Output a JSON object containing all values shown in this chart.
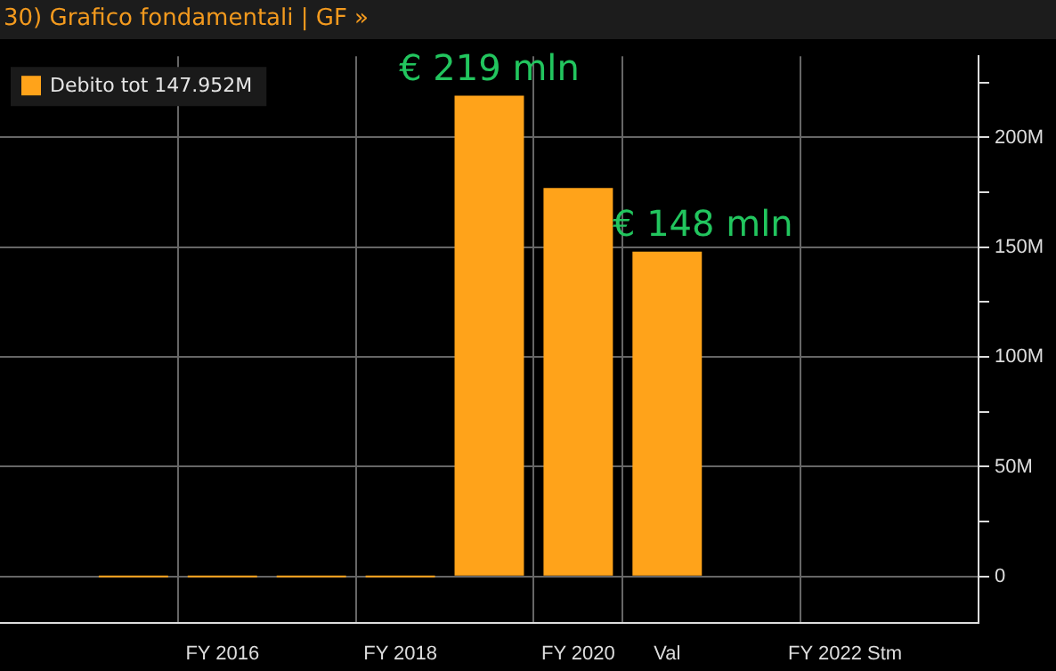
{
  "chart_data": {
    "type": "bar",
    "title": "30) Grafico fondamentali | GF »",
    "categories": [
      null,
      null,
      "FY 2016",
      null,
      "FY 2018",
      null,
      "FY 2020",
      "Val",
      null,
      "FY 2022 Stm",
      null
    ],
    "series": [
      {
        "name": "Debito tot 147.952M",
        "color": "#ffa31a",
        "values": [
          null,
          0,
          0,
          0,
          0,
          219,
          177,
          148,
          null,
          null,
          null
        ]
      }
    ],
    "ylim": [
      -21,
      237
    ],
    "yticks": [
      {
        "value": 0,
        "label": "0"
      },
      {
        "value": 25,
        "label": null
      },
      {
        "value": 50,
        "label": "50M"
      },
      {
        "value": 75,
        "label": null
      },
      {
        "value": 100,
        "label": "100M"
      },
      {
        "value": 125,
        "label": null
      },
      {
        "value": 150,
        "label": "150M"
      },
      {
        "value": 175,
        "label": null
      },
      {
        "value": 200,
        "label": "200M"
      },
      {
        "value": 225,
        "label": null
      }
    ],
    "annotations": [
      {
        "text": "€ 219 mln",
        "y": 219
      },
      {
        "text": "€ 148 mln",
        "x": "Val",
        "y": 148
      }
    ],
    "grid": true,
    "legend": "top left"
  }
}
